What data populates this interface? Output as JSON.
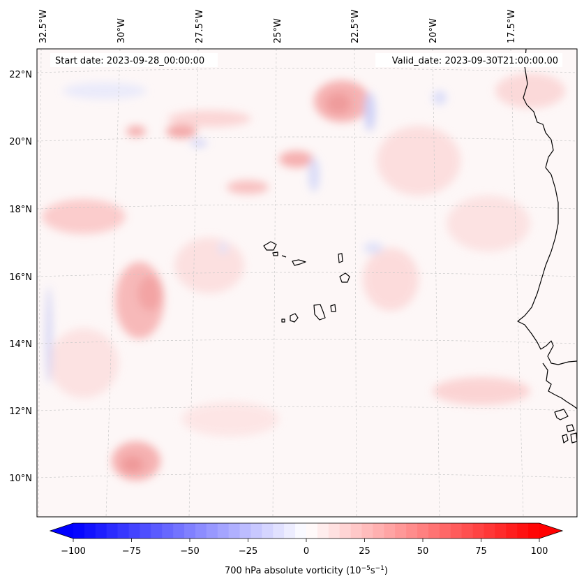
{
  "header": {
    "start_date": "Start date: 2023-09-28_00:00:00",
    "valid_date": "Valid_date: 2023-09-30T21:00:00.00"
  },
  "map": {
    "lon_labels": [
      "32.5°W",
      "30°W",
      "27.5°W",
      "25°W",
      "22.5°W",
      "20°W",
      "17.5°W"
    ],
    "lat_labels": [
      "22°N",
      "20°N",
      "18°N",
      "16°N",
      "14°N",
      "12°N",
      "10°N"
    ],
    "coast_color": "#000000",
    "grid_color": "#c8c8c8",
    "background_color": "#fdf7f7"
  },
  "colorbar": {
    "label": "700 hPa absolute vorticity (10",
    "label_exp1": "−5",
    "label_mid": "s",
    "label_exp2": "−1",
    "label_end": ")",
    "range": [
      -100,
      100
    ],
    "tick_labels": [
      "−100",
      "−75",
      "−50",
      "−25",
      "0",
      "25",
      "50",
      "75",
      "100"
    ],
    "low_color": "#0000ff",
    "mid_color": "#ffffff",
    "high_color": "#ff0000",
    "levels": 42
  }
}
